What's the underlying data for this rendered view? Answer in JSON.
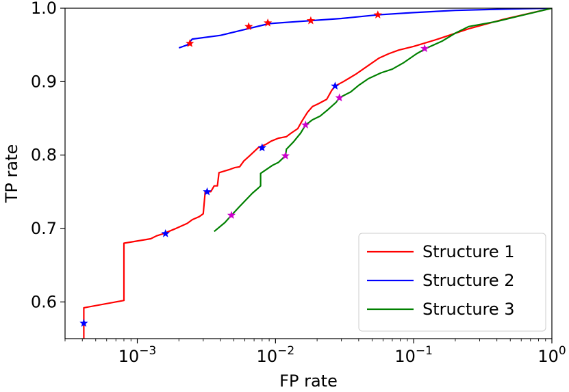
{
  "chart_data": {
    "type": "line",
    "xlabel": "FP rate",
    "ylabel": "TP rate",
    "xscale": "log",
    "xlim": [
      0.0003,
      1.0
    ],
    "ylim": [
      0.55,
      1.0
    ],
    "grid": false,
    "legend_position": "lower-right",
    "x_ticks": [
      {
        "value": 0.001,
        "base": "10",
        "exp": "−3"
      },
      {
        "value": 0.01,
        "base": "10",
        "exp": "−2"
      },
      {
        "value": 0.1,
        "base": "10",
        "exp": "−1"
      },
      {
        "value": 1,
        "base": "10",
        "exp": "0"
      }
    ],
    "y_ticks": [
      {
        "value": 0.6,
        "label": "0.6"
      },
      {
        "value": 0.7,
        "label": "0.7"
      },
      {
        "value": 0.8,
        "label": "0.8"
      },
      {
        "value": 0.9,
        "label": "0.9"
      },
      {
        "value": 1.0,
        "label": "1.0"
      }
    ],
    "series": [
      {
        "name": "Structure 1",
        "color": "#ff0000",
        "marker_color": "#0000ff",
        "points": [
          [
            0.00041,
            0.55
          ],
          [
            0.00041,
            0.592
          ],
          [
            0.0008,
            0.602
          ],
          [
            0.0008,
            0.68
          ],
          [
            0.00125,
            0.686
          ],
          [
            0.00138,
            0.69
          ],
          [
            0.00155,
            0.693
          ],
          [
            0.0019,
            0.7
          ],
          [
            0.0023,
            0.707
          ],
          [
            0.0025,
            0.712
          ],
          [
            0.0028,
            0.716
          ],
          [
            0.003,
            0.72
          ],
          [
            0.0031,
            0.75
          ],
          [
            0.0034,
            0.75
          ],
          [
            0.0036,
            0.758
          ],
          [
            0.0038,
            0.758
          ],
          [
            0.0039,
            0.776
          ],
          [
            0.0046,
            0.78
          ],
          [
            0.0051,
            0.783
          ],
          [
            0.0055,
            0.784
          ],
          [
            0.0059,
            0.792
          ],
          [
            0.0065,
            0.799
          ],
          [
            0.0075,
            0.81
          ],
          [
            0.0086,
            0.815
          ],
          [
            0.0093,
            0.819
          ],
          [
            0.0105,
            0.823
          ],
          [
            0.012,
            0.825
          ],
          [
            0.013,
            0.83
          ],
          [
            0.0145,
            0.836
          ],
          [
            0.0155,
            0.846
          ],
          [
            0.017,
            0.858
          ],
          [
            0.0185,
            0.866
          ],
          [
            0.0205,
            0.87
          ],
          [
            0.0235,
            0.876
          ],
          [
            0.0255,
            0.888
          ],
          [
            0.027,
            0.894
          ],
          [
            0.031,
            0.9
          ],
          [
            0.038,
            0.91
          ],
          [
            0.047,
            0.922
          ],
          [
            0.056,
            0.932
          ],
          [
            0.066,
            0.938
          ],
          [
            0.078,
            0.943
          ],
          [
            0.1,
            0.948
          ],
          [
            0.15,
            0.958
          ],
          [
            0.25,
            0.972
          ],
          [
            0.45,
            0.985
          ],
          [
            1.0,
            1.0
          ]
        ],
        "markers": [
          [
            0.00041,
            0.571
          ],
          [
            0.0016,
            0.693
          ],
          [
            0.0032,
            0.75
          ],
          [
            0.008,
            0.81
          ],
          [
            0.027,
            0.894
          ]
        ]
      },
      {
        "name": "Structure 2",
        "color": "#0000ff",
        "marker_color": "#ff0000",
        "points": [
          [
            0.002,
            0.946
          ],
          [
            0.0023,
            0.95
          ],
          [
            0.0025,
            0.958
          ],
          [
            0.004,
            0.963
          ],
          [
            0.006,
            0.971
          ],
          [
            0.009,
            0.979
          ],
          [
            0.015,
            0.982
          ],
          [
            0.03,
            0.986
          ],
          [
            0.055,
            0.991
          ],
          [
            0.1,
            0.994
          ],
          [
            0.2,
            0.997
          ],
          [
            0.5,
            0.999
          ],
          [
            1.0,
            1.0
          ]
        ],
        "markers": [
          [
            0.0024,
            0.952
          ],
          [
            0.0064,
            0.975
          ],
          [
            0.0088,
            0.98
          ],
          [
            0.018,
            0.983
          ],
          [
            0.055,
            0.991
          ]
        ]
      },
      {
        "name": "Structure 3",
        "color": "#008000",
        "marker_color": "#cc00cc",
        "points": [
          [
            0.0036,
            0.696
          ],
          [
            0.0043,
            0.708
          ],
          [
            0.0048,
            0.718
          ],
          [
            0.0055,
            0.73
          ],
          [
            0.0068,
            0.748
          ],
          [
            0.0075,
            0.755
          ],
          [
            0.0078,
            0.758
          ],
          [
            0.0078,
            0.775
          ],
          [
            0.0095,
            0.786
          ],
          [
            0.0105,
            0.79
          ],
          [
            0.0118,
            0.799
          ],
          [
            0.012,
            0.808
          ],
          [
            0.0135,
            0.818
          ],
          [
            0.0152,
            0.83
          ],
          [
            0.0165,
            0.841
          ],
          [
            0.0185,
            0.848
          ],
          [
            0.021,
            0.853
          ],
          [
            0.024,
            0.862
          ],
          [
            0.0275,
            0.872
          ],
          [
            0.029,
            0.878
          ],
          [
            0.035,
            0.886
          ],
          [
            0.04,
            0.895
          ],
          [
            0.047,
            0.904
          ],
          [
            0.058,
            0.912
          ],
          [
            0.07,
            0.917
          ],
          [
            0.085,
            0.926
          ],
          [
            0.105,
            0.938
          ],
          [
            0.125,
            0.946
          ],
          [
            0.16,
            0.955
          ],
          [
            0.2,
            0.966
          ],
          [
            0.25,
            0.975
          ],
          [
            0.4,
            0.982
          ],
          [
            0.6,
            0.99
          ],
          [
            1.0,
            1.0
          ]
        ],
        "markers": [
          [
            0.0048,
            0.718
          ],
          [
            0.0118,
            0.799
          ],
          [
            0.0165,
            0.841
          ],
          [
            0.029,
            0.878
          ],
          [
            0.12,
            0.945
          ]
        ]
      }
    ]
  }
}
